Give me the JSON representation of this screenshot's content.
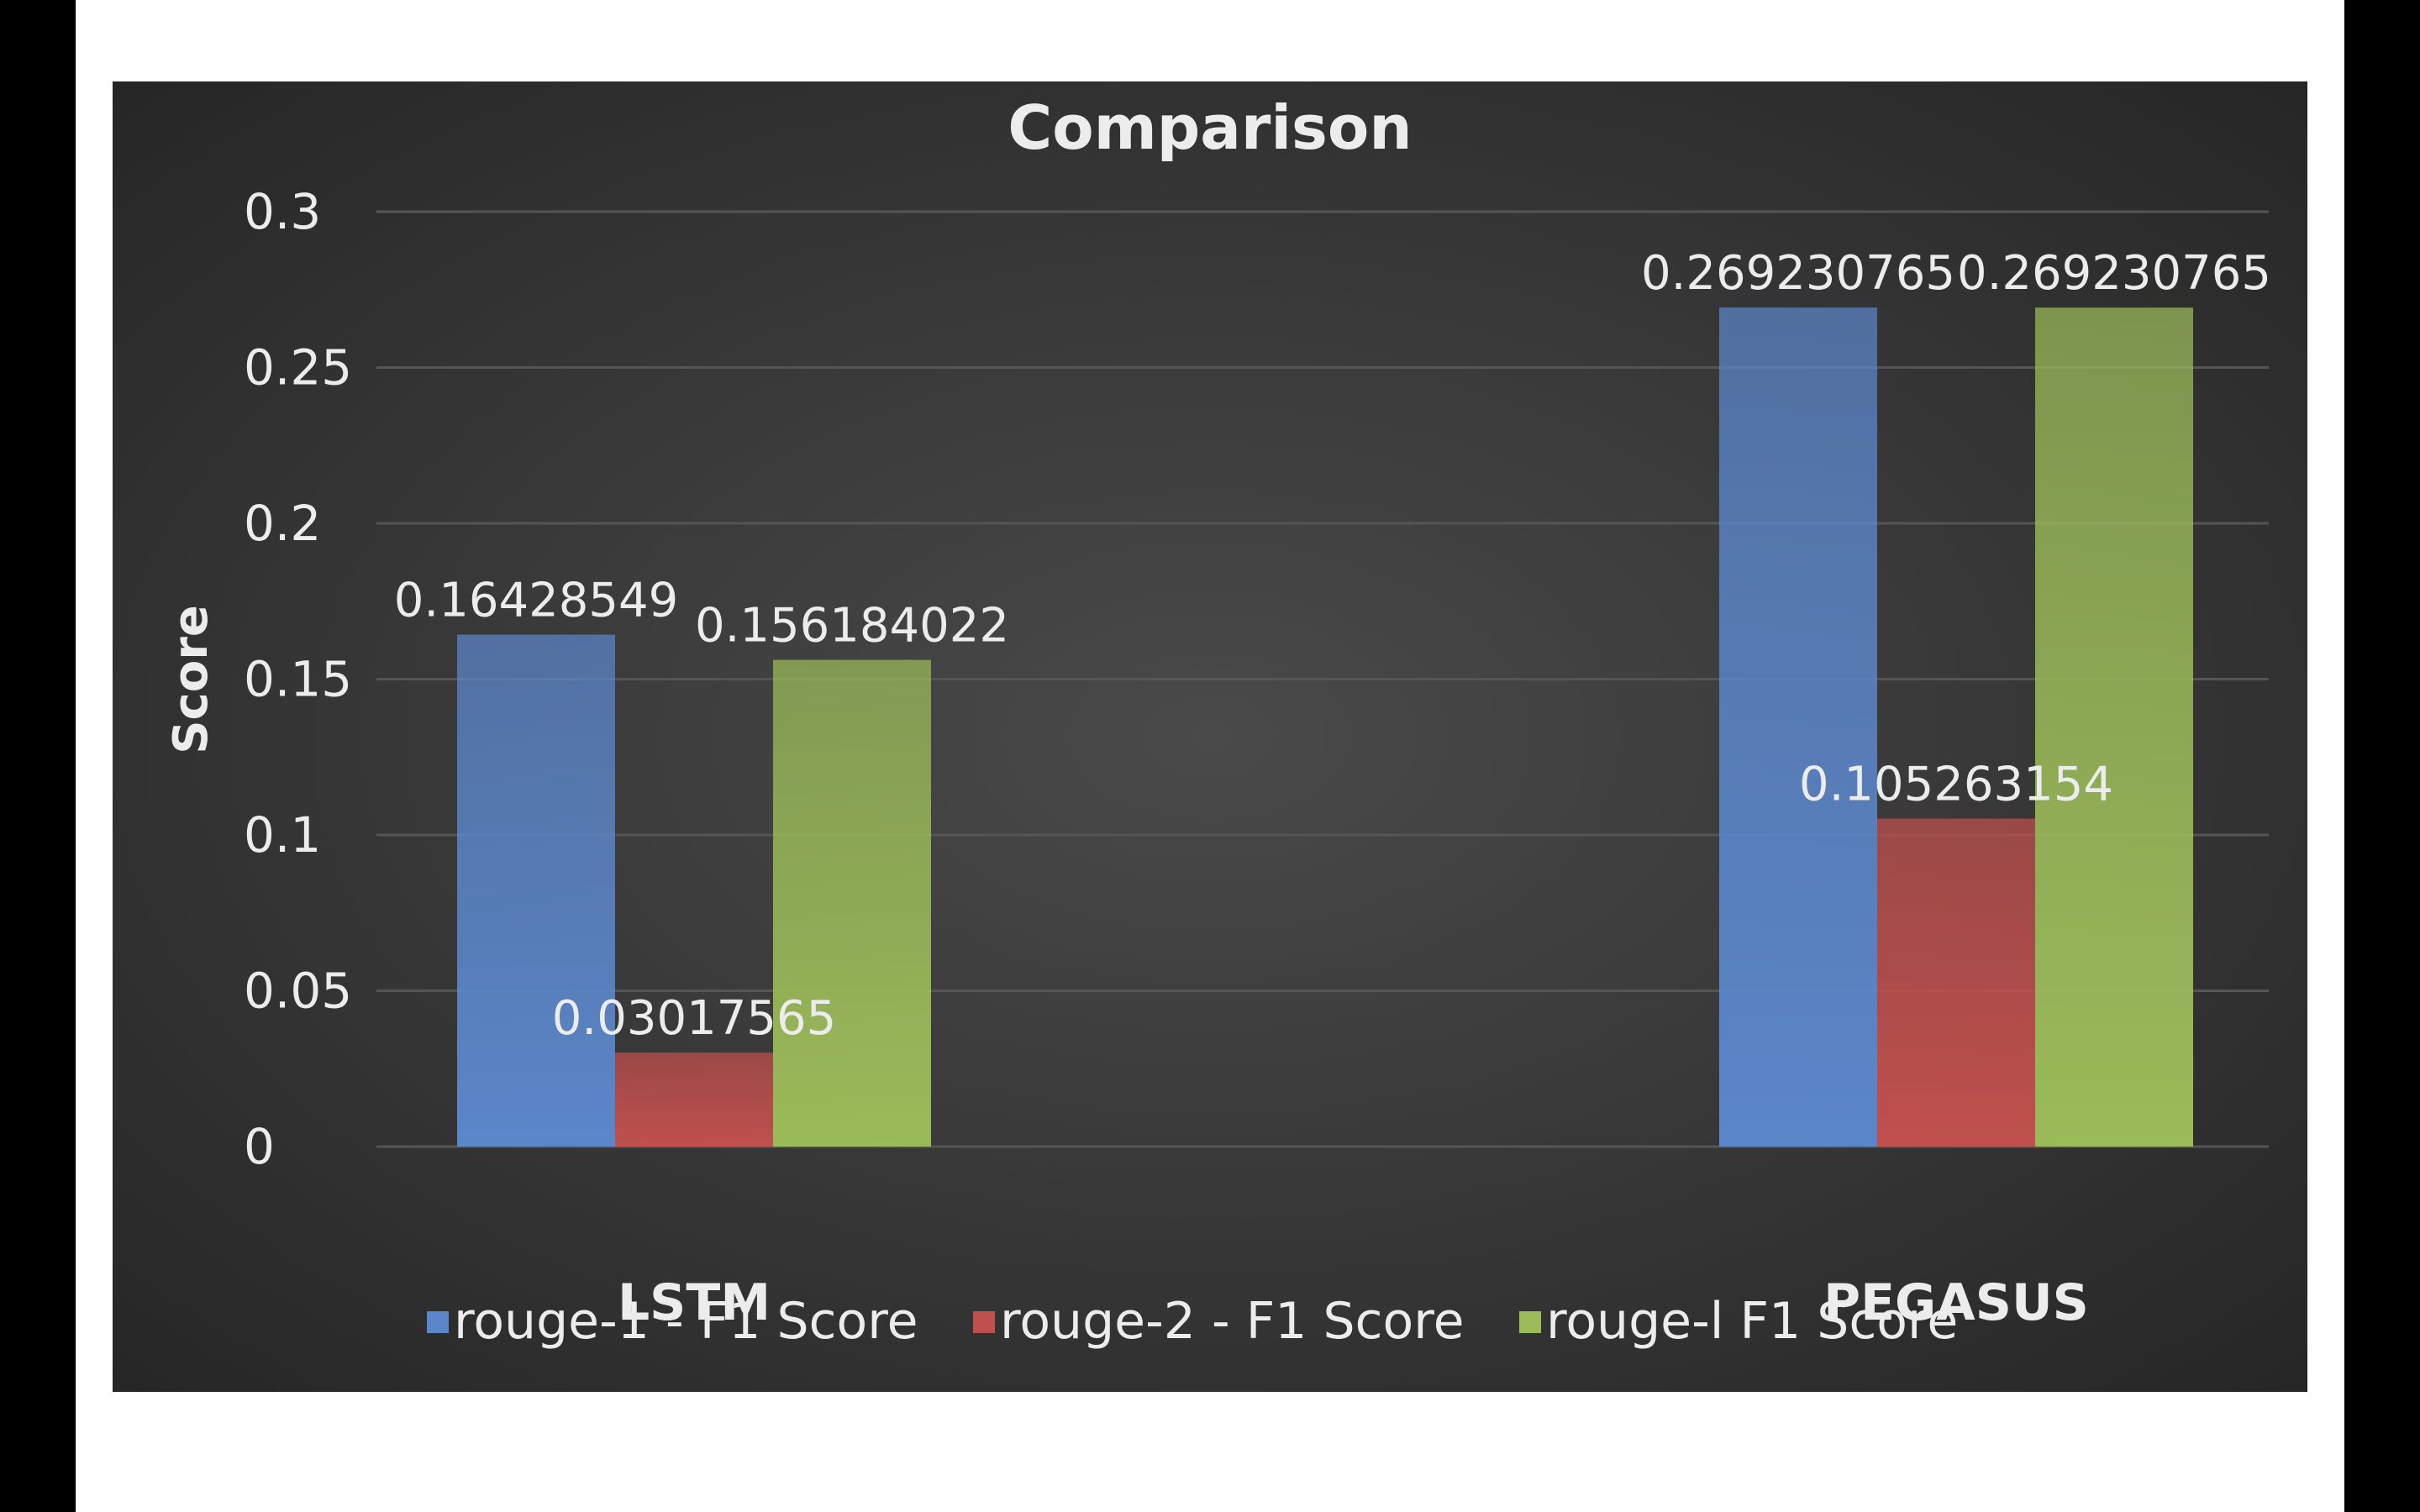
{
  "chart_data": {
    "type": "bar",
    "title": "Comparison",
    "xlabel": "",
    "ylabel": "Score",
    "ylim": [
      0,
      0.3
    ],
    "yticks": [
      "0",
      "0.05",
      "0.1",
      "0.15",
      "0.2",
      "0.25",
      "0.3"
    ],
    "categories": [
      "LSTM",
      "PEGASUS"
    ],
    "series": [
      {
        "name": "rouge-1 - F1 Score",
        "values": [
          0.16428549,
          0.269230765
        ],
        "labels": [
          "0.16428549",
          "0.269230765"
        ]
      },
      {
        "name": "rouge-2 - F1 Score",
        "values": [
          0.03017565,
          0.105263154
        ],
        "labels": [
          "0.03017565",
          "0.105263154"
        ]
      },
      {
        "name": "rouge-l F1 Score",
        "values": [
          0.156184022,
          0.269230765
        ],
        "labels": [
          "0.156184022",
          "0.269230765"
        ]
      }
    ],
    "grid": true,
    "legend_position": "bottom",
    "colors": {
      "background": "#3a3a3a",
      "series": [
        "#5b86c9",
        "#c0504d",
        "#9bbb59"
      ],
      "text": "#ececec",
      "grid": "#555555"
    }
  }
}
